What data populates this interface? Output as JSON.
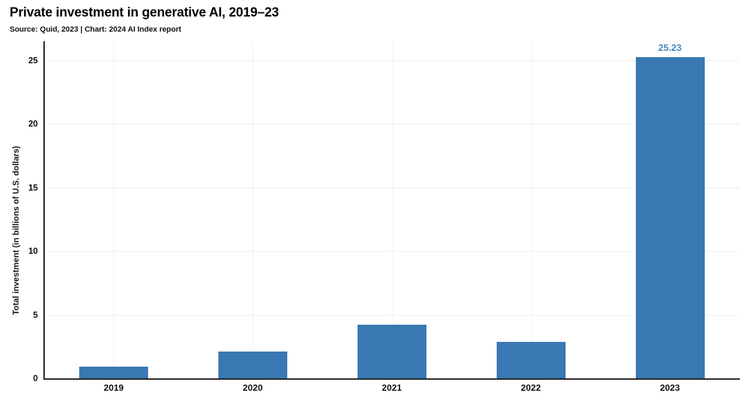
{
  "chart_data": {
    "type": "bar",
    "title": "Private investment in generative AI, 2019–23",
    "subtitle": "Source: Quid, 2023 | Chart: 2024 AI Index report",
    "ylabel": "Total investment (in billions of U.S. dollars)",
    "xlabel": "",
    "categories": [
      "2019",
      "2020",
      "2021",
      "2022",
      "2023"
    ],
    "values": [
      0.9,
      2.1,
      4.2,
      2.85,
      25.23
    ],
    "value_labels": [
      "",
      "",
      "",
      "",
      "25.23"
    ],
    "yticks": [
      0,
      5,
      10,
      15,
      20,
      25
    ],
    "ylim": [
      0,
      26.5
    ],
    "grid": "faint horizontal lines at each y tick and faint vertical lines at each category center",
    "legend": "none",
    "colors": {
      "bar": "#3a78b3",
      "value_label": "#4488c8",
      "axis": "#1f1f1f",
      "grid_horizontal": "#ededed",
      "grid_vertical": "#f4f4f4",
      "text": "#111111"
    }
  }
}
